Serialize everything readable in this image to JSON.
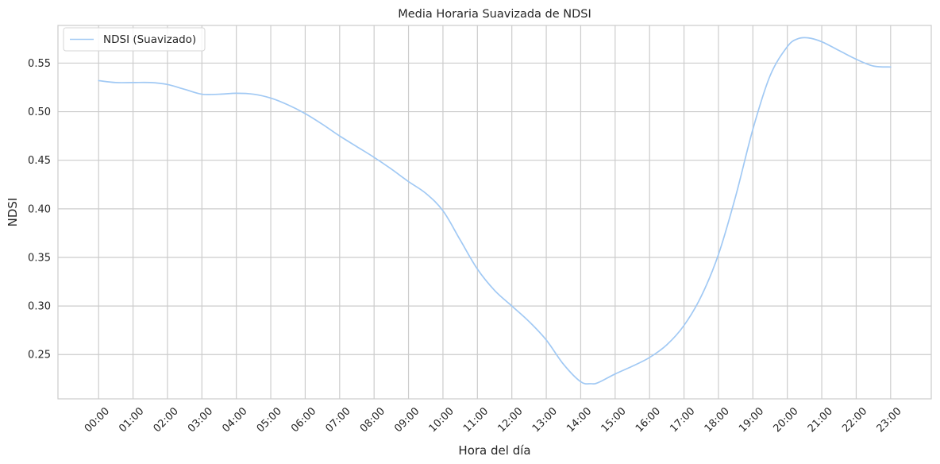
{
  "chart_data": {
    "type": "line",
    "title": "Media Horaria Suavizada de NDSI",
    "xlabel": "Hora del día",
    "ylabel": "NDSI",
    "categories": [
      "00:00",
      "01:00",
      "02:00",
      "03:00",
      "04:00",
      "05:00",
      "06:00",
      "07:00",
      "08:00",
      "09:00",
      "10:00",
      "11:00",
      "12:00",
      "13:00",
      "14:00",
      "15:00",
      "16:00",
      "17:00",
      "18:00",
      "19:00",
      "20:00",
      "21:00",
      "22:00",
      "23:00"
    ],
    "series": [
      {
        "name": "NDSI (Suavizado)",
        "color": "#a1c9f4",
        "x": [
          0,
          0.5,
          1,
          1.5,
          2,
          2.5,
          3,
          3.5,
          4,
          4.5,
          5,
          5.5,
          6,
          6.5,
          7,
          7.5,
          8,
          8.5,
          9,
          9.5,
          10,
          10.5,
          11,
          11.5,
          12,
          12.5,
          13,
          13.5,
          14,
          14.3,
          14.5,
          15,
          15.5,
          16,
          16.5,
          17,
          17.5,
          18,
          18.5,
          19,
          19.5,
          20,
          20.3,
          20.6,
          21,
          21.5,
          22,
          22.5,
          23
        ],
        "values": [
          0.532,
          0.53,
          0.53,
          0.53,
          0.528,
          0.523,
          0.518,
          0.518,
          0.519,
          0.518,
          0.514,
          0.507,
          0.498,
          0.487,
          0.475,
          0.464,
          0.453,
          0.441,
          0.428,
          0.416,
          0.398,
          0.368,
          0.338,
          0.316,
          0.3,
          0.284,
          0.265,
          0.24,
          0.222,
          0.22,
          0.221,
          0.23,
          0.238,
          0.247,
          0.26,
          0.28,
          0.31,
          0.353,
          0.413,
          0.482,
          0.537,
          0.567,
          0.575,
          0.576,
          0.572,
          0.563,
          0.554,
          0.547,
          0.546
        ]
      }
    ],
    "xlim": [
      -1.18,
      24.18
    ],
    "ylim": [
      0.2044,
      0.5888
    ],
    "yticks": [
      "0.25",
      "0.30",
      "0.35",
      "0.40",
      "0.45",
      "0.50",
      "0.55"
    ],
    "grid": true,
    "legend": "upper-left"
  }
}
